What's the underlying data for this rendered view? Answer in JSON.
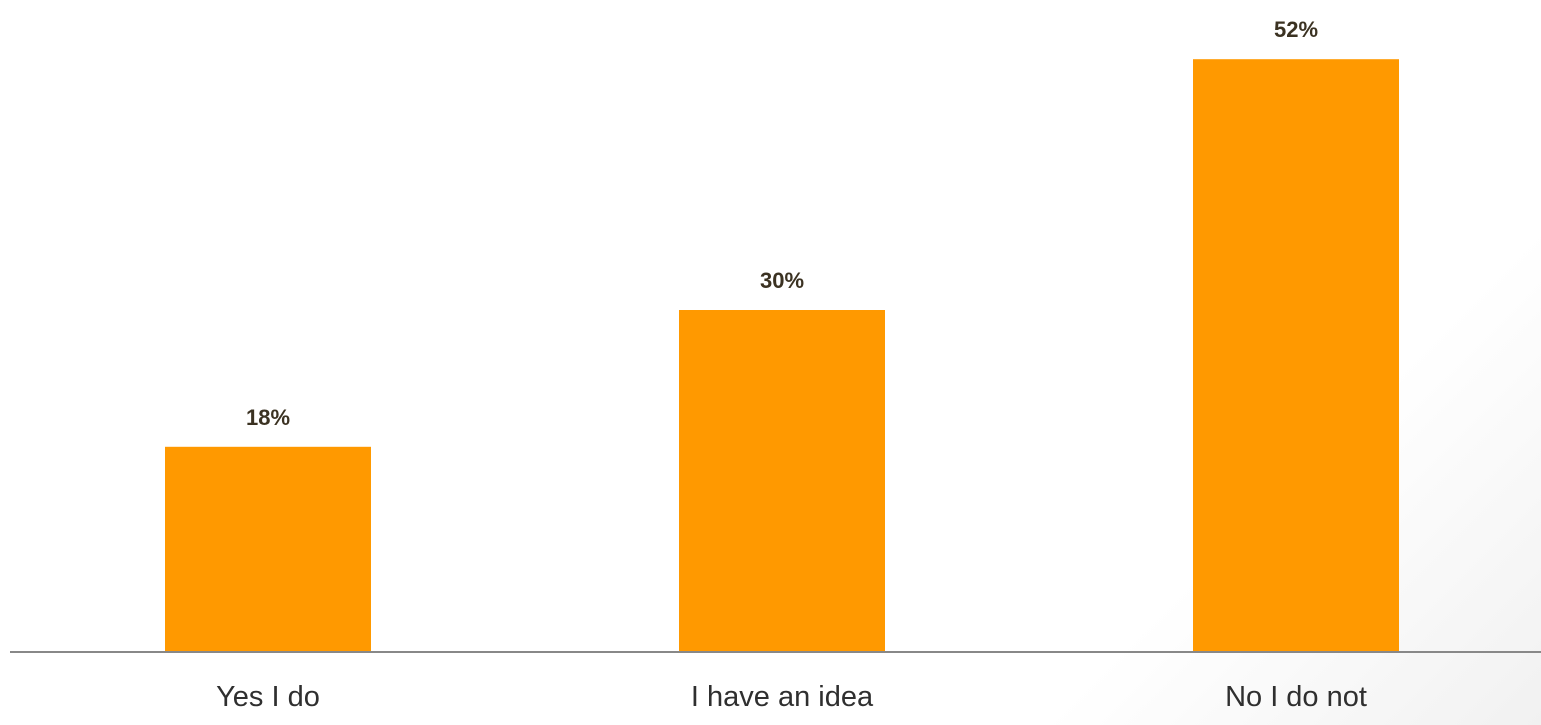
{
  "chart_data": {
    "type": "bar",
    "categories": [
      "Yes I do",
      "I have an idea",
      "No I do not"
    ],
    "values": [
      18,
      30,
      52
    ],
    "value_labels": [
      "18%",
      "30%",
      "52%"
    ],
    "title": "",
    "xlabel": "",
    "ylabel": "",
    "ylim": [
      0,
      60
    ],
    "grid": false,
    "legend": "none",
    "bar_color": "#FF9900",
    "axis_color": "#888888"
  }
}
